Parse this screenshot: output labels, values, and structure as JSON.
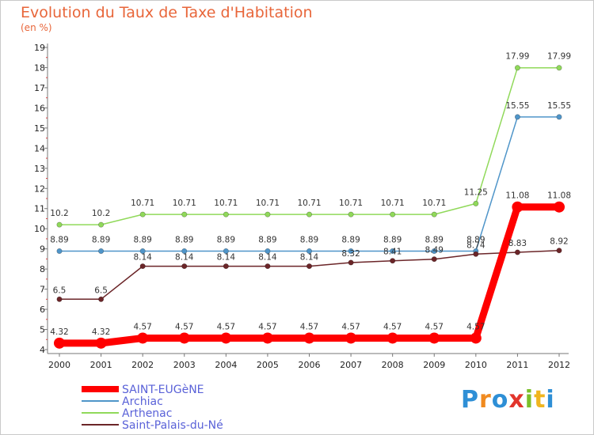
{
  "title": "Evolution du Taux de Taxe d'Habitation",
  "subtitle": "(en %)",
  "logo": {
    "text": "Proxiti",
    "letters": [
      "P",
      "r",
      "o",
      "x",
      "i",
      "t",
      "i"
    ],
    "colors": [
      "#2e8fd6",
      "#f08a1f",
      "#2e8fd6",
      "#e2352c",
      "#7cbf2a",
      "#f0b51f",
      "#2e8fd6"
    ]
  },
  "chart_data": {
    "type": "line",
    "title": "Evolution du Taux de Taxe d'Habitation",
    "ylabel": "(en %)",
    "xlabel": "",
    "ylim": [
      4,
      19
    ],
    "yticks": [
      "4",
      "5",
      "6",
      "7",
      "8",
      "9",
      "10",
      "11",
      "12",
      "13",
      "14",
      "15",
      "16",
      "17",
      "18",
      "19"
    ],
    "x": [
      "2000",
      "2001",
      "2002",
      "2003",
      "2004",
      "2005",
      "2006",
      "2007",
      "2008",
      "2009",
      "2010",
      "2011",
      "2012"
    ],
    "grid": false,
    "legend": "bottom-left",
    "series": [
      {
        "name": "SAINT-EUGèNE",
        "color": "#ff0000",
        "values": [
          4.32,
          4.32,
          4.57,
          4.57,
          4.57,
          4.57,
          4.57,
          4.57,
          4.57,
          4.57,
          4.57,
          11.08,
          11.08
        ],
        "labels": [
          "4.32",
          "4.32",
          "4.57",
          "4.57",
          "4.57",
          "4.57",
          "4.57",
          "4.57",
          "4.57",
          "4.57",
          "4.57",
          "11.08",
          "11.08"
        ]
      },
      {
        "name": "Archiac",
        "color": "#4f95c9",
        "values": [
          8.89,
          8.89,
          8.89,
          8.89,
          8.89,
          8.89,
          8.89,
          8.89,
          8.89,
          8.89,
          8.89,
          15.55,
          15.55
        ],
        "labels": [
          "8.89",
          "8.89",
          "8.89",
          "8.89",
          "8.89",
          "8.89",
          "8.89",
          "8.89",
          "8.89",
          "8.89",
          "8.89",
          "15.55",
          "15.55"
        ]
      },
      {
        "name": "Arthenac",
        "color": "#90d95a",
        "values": [
          10.2,
          10.2,
          10.71,
          10.71,
          10.71,
          10.71,
          10.71,
          10.71,
          10.71,
          10.71,
          11.25,
          17.99,
          17.99
        ],
        "labels": [
          "10.2",
          "10.2",
          "10.71",
          "10.71",
          "10.71",
          "10.71",
          "10.71",
          "10.71",
          "10.71",
          "10.71",
          "11.25",
          "17.99",
          "17.99"
        ]
      },
      {
        "name": "Saint-Palais-du-Né",
        "color": "#6b2528",
        "values": [
          6.5,
          6.5,
          8.14,
          8.14,
          8.14,
          8.14,
          8.14,
          8.32,
          8.41,
          8.49,
          8.74,
          8.83,
          8.92
        ],
        "labels": [
          "6.5",
          "6.5",
          "8.14",
          "8.14",
          "8.14",
          "8.14",
          "8.14",
          "8.32",
          "8.41",
          "8.49",
          "8.74",
          "8.83",
          "8.92"
        ]
      }
    ]
  }
}
